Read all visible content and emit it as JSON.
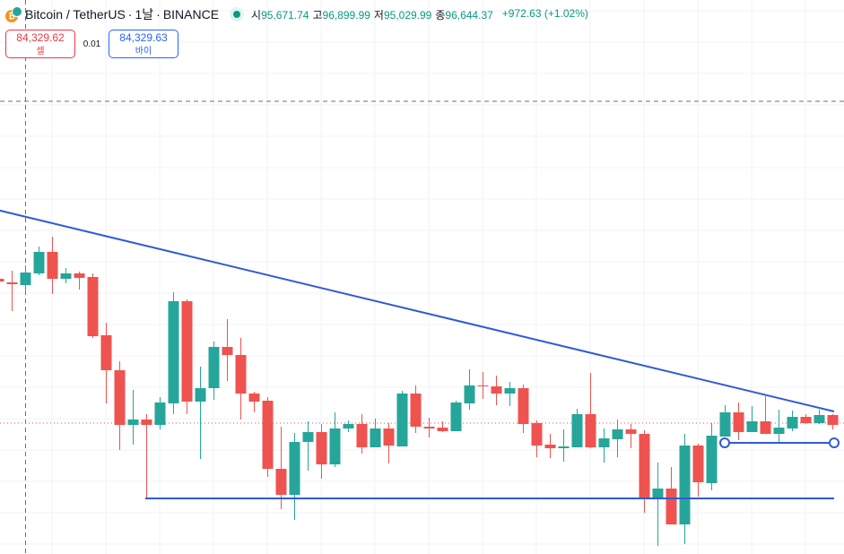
{
  "header": {
    "symbol": "Bitcoin / TetherUS",
    "sep1": "·",
    "interval": "1날",
    "sep2": "·",
    "exchange": "BINANCE",
    "coin_icon": "bitcoin-tether-icon",
    "open_label": "시",
    "open": "95,671.74",
    "high_label": "고",
    "high": "96,899.99",
    "low_label": "저",
    "low": "95,029.99",
    "close_label": "종",
    "close": "96,644.37",
    "change": "+972.63 (+1.02%)"
  },
  "trade": {
    "sell_price": "84,329.62",
    "sell_label": "셀",
    "spread": "0.01",
    "buy_price": "84,329.63",
    "buy_label": "바이"
  },
  "colors": {
    "up": "#26a69a",
    "down": "#ef5350",
    "drawing": "#2e5bd6",
    "grid": "#f0f3fa",
    "last_price": "#ef5350"
  },
  "chart_data": {
    "type": "candlestick",
    "title": "Bitcoin / TetherUS · 1날 · BINANCE",
    "ylim": [
      75570,
      112650
    ],
    "last_price": 84330,
    "crosshair": {
      "candle_index": 2,
      "price": 105870
    },
    "candles": [
      [
        93990,
        94110,
        93690,
        93810
      ],
      [
        93750,
        94530,
        91830,
        93630
      ],
      [
        93570,
        94890,
        93090,
        94410
      ],
      [
        94350,
        96150,
        94230,
        95790
      ],
      [
        95790,
        96810,
        92970,
        93990
      ],
      [
        93990,
        94710,
        93690,
        94350
      ],
      [
        94350,
        94470,
        93270,
        94050
      ],
      [
        94110,
        94350,
        90030,
        90150
      ],
      [
        90210,
        91050,
        85650,
        87870
      ],
      [
        87870,
        88470,
        82530,
        84210
      ],
      [
        84210,
        86550,
        82890,
        84570
      ],
      [
        84570,
        84930,
        79290,
        84210
      ],
      [
        84210,
        86070,
        83910,
        85710
      ],
      [
        85650,
        93090,
        84930,
        92490
      ],
      [
        92490,
        92610,
        84930,
        85770
      ],
      [
        85770,
        88110,
        81930,
        86670
      ],
      [
        86670,
        89790,
        85890,
        89430
      ],
      [
        89430,
        91290,
        87150,
        88890
      ],
      [
        88890,
        90030,
        84570,
        86310
      ],
      [
        86310,
        86430,
        85050,
        85770
      ],
      [
        85830,
        86070,
        80730,
        81270
      ],
      [
        81270,
        84090,
        78570,
        79530
      ],
      [
        79530,
        83670,
        77850,
        83070
      ],
      [
        83070,
        84450,
        81150,
        83730
      ],
      [
        83730,
        84270,
        80610,
        81570
      ],
      [
        81570,
        85050,
        81390,
        83970
      ],
      [
        83970,
        84510,
        83730,
        84270
      ],
      [
        84270,
        84930,
        82290,
        82710
      ],
      [
        82710,
        84630,
        82710,
        83970
      ],
      [
        83970,
        84330,
        81630,
        82830
      ],
      [
        82770,
        86490,
        82770,
        86310
      ],
      [
        86310,
        86850,
        83670,
        84090
      ],
      [
        84090,
        84690,
        83370,
        83970
      ],
      [
        84030,
        84450,
        83730,
        83790
      ],
      [
        83790,
        85830,
        83790,
        85710
      ],
      [
        85650,
        87930,
        85230,
        86850
      ],
      [
        86850,
        87750,
        85950,
        86790
      ],
      [
        86790,
        87510,
        85530,
        86310
      ],
      [
        86310,
        87090,
        85470,
        86670
      ],
      [
        86670,
        86910,
        83670,
        84270
      ],
      [
        84330,
        84510,
        82050,
        82830
      ],
      [
        82890,
        83610,
        81990,
        82650
      ],
      [
        82650,
        83910,
        81750,
        82770
      ],
      [
        82710,
        85290,
        82710,
        84930
      ],
      [
        84930,
        87690,
        82650,
        82710
      ],
      [
        82710,
        83970,
        81690,
        83310
      ],
      [
        83250,
        84570,
        82050,
        83910
      ],
      [
        83910,
        84270,
        82650,
        83610
      ],
      [
        83610,
        83850,
        78330,
        79290
      ],
      [
        79290,
        81690,
        76110,
        79950
      ],
      [
        79950,
        81390,
        77550,
        77550
      ],
      [
        77550,
        83610,
        76230,
        82830
      ],
      [
        82830,
        82950,
        79410,
        80370
      ],
      [
        80310,
        84330,
        79830,
        83490
      ],
      [
        83430,
        85530,
        83430,
        85050
      ],
      [
        85050,
        85710,
        83190,
        83730
      ],
      [
        83730,
        85470,
        83730,
        84450
      ],
      [
        84450,
        86130,
        83610,
        83610
      ],
      [
        83610,
        85230,
        82950,
        84030
      ],
      [
        83970,
        85170,
        83790,
        84750
      ],
      [
        84750,
        84930,
        84270,
        84330
      ],
      [
        84330,
        85230,
        84270,
        84870
      ],
      [
        84870,
        84930,
        83910,
        84210
      ]
    ],
    "drawings": {
      "trendline": {
        "from": {
          "candle_index": 0,
          "price": 98610
        },
        "to": {
          "candle_index": 62,
          "price": 85110
        }
      },
      "support_line": {
        "from_candle_index": 11,
        "to_candle_index": 62,
        "price": 79290
      },
      "range_line": {
        "from_candle_index": 54,
        "to_candle_index": 62,
        "price": 83010
      }
    }
  }
}
